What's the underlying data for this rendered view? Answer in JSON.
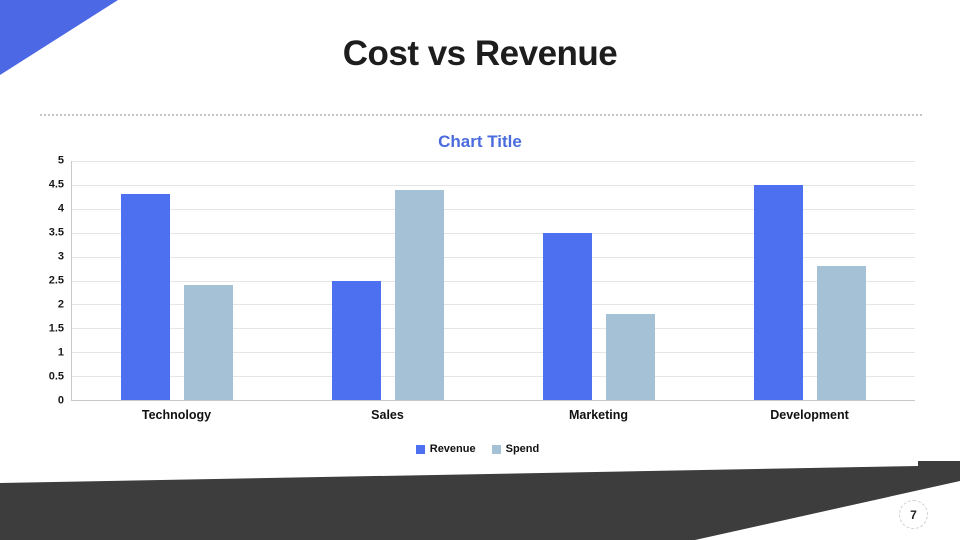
{
  "slide": {
    "title": "Cost vs Revenue",
    "page_number": "7"
  },
  "colors": {
    "accent_blue": "#4c68e4",
    "chart_title_blue": "#4a6cdd",
    "dark_shape": "#3d3d3d"
  },
  "chart_data": {
    "type": "bar",
    "title": "Chart Title",
    "categories": [
      "Technology",
      "Sales",
      "Marketing",
      "Development"
    ],
    "series": [
      {
        "name": "Revenue",
        "color": "#4d70f0",
        "values": [
          4.3,
          2.5,
          3.5,
          4.5
        ]
      },
      {
        "name": "Spend",
        "color": "#a4c1d5",
        "values": [
          2.4,
          4.4,
          1.8,
          2.8
        ]
      }
    ],
    "xlabel": "",
    "ylabel": "",
    "ylim": [
      0,
      5
    ],
    "ytick_step": 0.5,
    "yticks": [
      "5",
      "4.5",
      "4",
      "3.5",
      "3",
      "2.5",
      "2",
      "1.5",
      "1",
      "0.5",
      "0"
    ],
    "grid": true,
    "legend_position": "bottom"
  }
}
